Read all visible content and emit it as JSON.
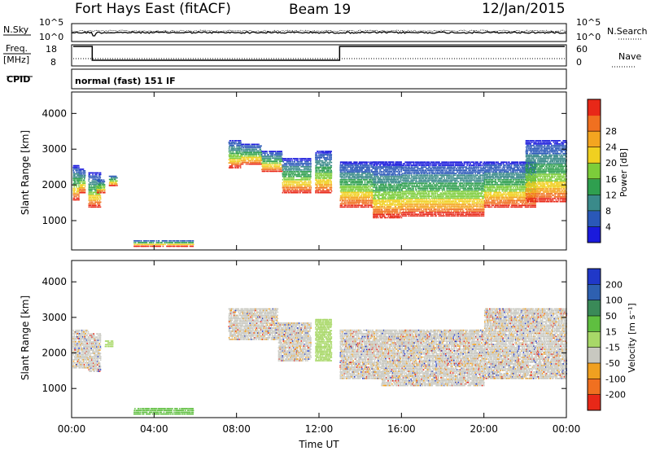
{
  "header": {
    "station": "Fort Hays East (fitACF)",
    "beam": "Beam 19",
    "date": "12/Jan/2015"
  },
  "noise_panel": {
    "left_label": "N.Sky",
    "right_label": "N.Search",
    "left_ticks": [
      "10^5",
      "10^0"
    ],
    "right_ticks": [
      "10^5",
      "10^0"
    ]
  },
  "freq_panel": {
    "left_label_line1": "Freq.",
    "left_label_line2": "[MHz]",
    "right_label": "Nave",
    "left_ticks": [
      "18",
      "8"
    ],
    "right_ticks": [
      "60",
      "0"
    ],
    "freq_high_mhz": 18,
    "freq_low_mhz": 8,
    "low_interval_hours": [
      1.0,
      13.0
    ]
  },
  "cpid": {
    "label": "CPID",
    "value": "normal (fast) 151 IF"
  },
  "chart_data": [
    {
      "type": "heatmap",
      "name": "power",
      "ylabel": "Slant Range [km]",
      "xlabel": "Time UT",
      "ylim": [
        180,
        4600
      ],
      "yticks": [
        "1000",
        "2000",
        "3000",
        "4000"
      ],
      "xticks": [
        "00:00",
        "04:00",
        "08:00",
        "12:00",
        "16:00",
        "20:00",
        "00:00"
      ],
      "colorbar": {
        "label": "Power [dB]",
        "ticks": [
          "4",
          "8",
          "12",
          "16",
          "20",
          "24",
          "28"
        ],
        "colors": [
          "#1a1adc",
          "#2a58b8",
          "#3a8a8a",
          "#2f9f4f",
          "#7ccd3a",
          "#f0d020",
          "#f4a520",
          "#f07020",
          "#e82818"
        ]
      },
      "bands": [
        {
          "t0": 0.05,
          "t1": 0.35,
          "r_min": 1600,
          "r_max": 2600
        },
        {
          "t0": 0.35,
          "t1": 0.65,
          "r_min": 1800,
          "r_max": 2500
        },
        {
          "t0": 0.8,
          "t1": 1.4,
          "r_min": 1400,
          "r_max": 2400
        },
        {
          "t0": 1.2,
          "t1": 1.6,
          "r_min": 1800,
          "r_max": 2200
        },
        {
          "t0": 1.8,
          "t1": 2.2,
          "r_min": 2000,
          "r_max": 2300
        },
        {
          "t0": 3.0,
          "t1": 5.9,
          "r_min": 300,
          "r_max": 500
        },
        {
          "t0": 7.6,
          "t1": 8.2,
          "r_min": 2500,
          "r_max": 3300
        },
        {
          "t0": 8.2,
          "t1": 9.2,
          "r_min": 2600,
          "r_max": 3200
        },
        {
          "t0": 9.2,
          "t1": 10.2,
          "r_min": 2400,
          "r_max": 3000
        },
        {
          "t0": 10.2,
          "t1": 11.6,
          "r_min": 1800,
          "r_max": 2800
        },
        {
          "t0": 11.8,
          "t1": 12.6,
          "r_min": 1800,
          "r_max": 3000
        },
        {
          "t0": 13.0,
          "t1": 14.6,
          "r_min": 1400,
          "r_max": 2700
        },
        {
          "t0": 14.6,
          "t1": 16.0,
          "r_min": 1100,
          "r_max": 2700
        },
        {
          "t0": 16.0,
          "t1": 20.0,
          "r_min": 1150,
          "r_max": 2700
        },
        {
          "t0": 20.0,
          "t1": 22.5,
          "r_min": 1400,
          "r_max": 2700
        },
        {
          "t0": 22.0,
          "t1": 24.0,
          "r_min": 1550,
          "r_max": 3300
        }
      ]
    },
    {
      "type": "heatmap",
      "name": "velocity",
      "ylabel": "Slant Range [km]",
      "xlabel": "Time UT",
      "ylim": [
        180,
        4600
      ],
      "yticks": [
        "1000",
        "2000",
        "3000",
        "4000"
      ],
      "xticks": [
        "00:00",
        "04:00",
        "08:00",
        "12:00",
        "16:00",
        "20:00",
        "00:00"
      ],
      "colorbar": {
        "label": "Velocity [m s⁻¹]",
        "ticks": [
          "200",
          "100",
          "50",
          "15",
          "-15",
          "-50",
          "-100",
          "-200"
        ],
        "colors": [
          "#2038c8",
          "#2e60b0",
          "#3a8a58",
          "#5fbf40",
          "#a8d868",
          "#c8c8c0",
          "#f0a020",
          "#f07020",
          "#e82818"
        ]
      },
      "bands": [
        {
          "t0": 0.05,
          "t1": 0.8,
          "r_min": 1600,
          "r_max": 2700
        },
        {
          "t0": 0.8,
          "t1": 1.4,
          "r_min": 1500,
          "r_max": 2600
        },
        {
          "t0": 1.6,
          "t1": 2.0,
          "r_min": 2200,
          "r_max": 2400
        },
        {
          "t0": 3.0,
          "t1": 5.9,
          "r_min": 300,
          "r_max": 500
        },
        {
          "t0": 7.6,
          "t1": 10.0,
          "r_min": 2400,
          "r_max": 3300
        },
        {
          "t0": 10.0,
          "t1": 11.6,
          "r_min": 1800,
          "r_max": 2900
        },
        {
          "t0": 11.8,
          "t1": 12.6,
          "r_min": 1800,
          "r_max": 3000
        },
        {
          "t0": 13.0,
          "t1": 15.0,
          "r_min": 1300,
          "r_max": 2700
        },
        {
          "t0": 15.0,
          "t1": 20.0,
          "r_min": 1100,
          "r_max": 2700
        },
        {
          "t0": 20.0,
          "t1": 24.0,
          "r_min": 1300,
          "r_max": 3300
        }
      ]
    }
  ],
  "colors": {
    "background": "#ffffff",
    "axis": "#000000",
    "ground_scatter": "#c8c8c0"
  }
}
